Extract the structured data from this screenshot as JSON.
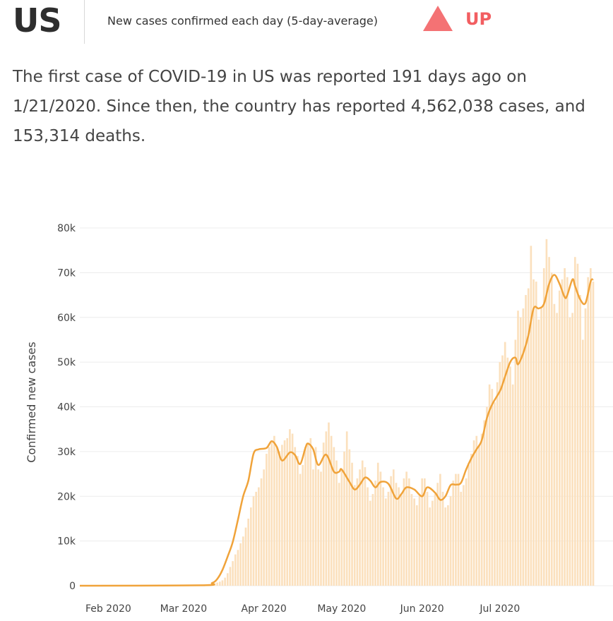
{
  "header": {
    "country": "US",
    "metric": "New cases confirmed each day (5-day-average)",
    "trend_label": "UP",
    "trend_icon": "triangle-up-icon",
    "trend_color": "#f25e61"
  },
  "summary": "The first case of COVID-19 in US was reported 191 days ago on 1/21/2020. Since then, the country has reported 4,562,038 cases, and 153,314 deaths.",
  "colors": {
    "bars": "#fbe0bd",
    "line": "#f0a33a",
    "grid": "#ececec"
  },
  "chart_data": {
    "type": "bar",
    "title": "",
    "xlabel": "",
    "ylabel": "Confirmed new cases",
    "ylim": [
      0,
      80000
    ],
    "y_ticks": [
      0,
      10000,
      20000,
      30000,
      40000,
      50000,
      60000,
      70000,
      80000
    ],
    "y_tick_labels": [
      "0",
      "10k",
      "20k",
      "30k",
      "40k",
      "50k",
      "60k",
      "70k",
      "80k"
    ],
    "x_ticks": [
      {
        "day": "2020-02-01",
        "label": "Feb 2020"
      },
      {
        "day": "2020-03-01",
        "label": "Mar 2020"
      },
      {
        "day": "2020-04-01",
        "label": "Apr 2020"
      },
      {
        "day": "2020-05-01",
        "label": "May 2020"
      },
      {
        "day": "2020-06-01",
        "label": "Jun 2020"
      },
      {
        "day": "2020-07-01",
        "label": "Jul 2020"
      }
    ],
    "grid": true,
    "series": [
      {
        "name": "",
        "kind": "bars",
        "start_date": "2020-01-21",
        "values": [
          1,
          0,
          0,
          0,
          1,
          0,
          0,
          0,
          0,
          1,
          0,
          2,
          0,
          0,
          0,
          1,
          0,
          0,
          0,
          0,
          0,
          0,
          0,
          0,
          0,
          0,
          0,
          0,
          0,
          0,
          0,
          2,
          0,
          1,
          0,
          0,
          0,
          10,
          20,
          20,
          30,
          40,
          50,
          70,
          100,
          120,
          150,
          200,
          280,
          300,
          330,
          450,
          550,
          700,
          900,
          1200,
          1800,
          2800,
          4200,
          5500,
          7000,
          8000,
          9500,
          11000,
          13000,
          15000,
          17500,
          20000,
          21000,
          22000,
          24000,
          26000,
          29500,
          31000,
          32000,
          33500,
          31000,
          30000,
          31500,
          32500,
          33000,
          35000,
          34000,
          31000,
          29000,
          25000,
          27000,
          31000,
          32000,
          33000,
          26000,
          31000,
          26000,
          25500,
          32000,
          34500,
          36500,
          33500,
          31000,
          28000,
          23000,
          26000,
          30000,
          34500,
          30500,
          27500,
          22500,
          24000,
          26000,
          28000,
          26500,
          22000,
          19000,
          20500,
          23500,
          27500,
          25500,
          22000,
          19500,
          21000,
          24500,
          26000,
          23000,
          22000,
          20500,
          24000,
          25500,
          24000,
          20500,
          19500,
          18000,
          20000,
          24000,
          24000,
          21000,
          17500,
          19000,
          20500,
          23000,
          25000,
          21000,
          17500,
          18000,
          20000,
          23500,
          25000,
          25000,
          21000,
          22500,
          24000,
          27000,
          29500,
          32500,
          33500,
          31500,
          34000,
          37000,
          40000,
          45000,
          44000,
          41000,
          45500,
          50000,
          51500,
          54500,
          51000,
          49000,
          45000,
          55000,
          61500,
          60000,
          62000,
          65000,
          66500,
          76000,
          68500,
          68000,
          59500,
          62000,
          71000,
          77500,
          73500,
          70000,
          63000,
          61000,
          66000,
          68500,
          71000,
          69000,
          60000,
          61000,
          73500,
          72000,
          65000,
          55000,
          62000,
          69000,
          71000,
          68000
        ]
      },
      {
        "name": "",
        "kind": "line",
        "label": "5-day average",
        "points": [
          [
            "2020-01-21",
            0
          ],
          [
            "2020-03-08",
            100
          ],
          [
            "2020-03-12",
            600
          ],
          [
            "2020-03-14",
            1500
          ],
          [
            "2020-03-16",
            3500
          ],
          [
            "2020-03-18",
            6500
          ],
          [
            "2020-03-20",
            9800
          ],
          [
            "2020-03-22",
            14800
          ],
          [
            "2020-03-24",
            20000
          ],
          [
            "2020-03-26",
            23500
          ],
          [
            "2020-03-28",
            29500
          ],
          [
            "2020-03-30",
            30500
          ],
          [
            "2020-04-02",
            30800
          ],
          [
            "2020-04-04",
            32300
          ],
          [
            "2020-04-06",
            31000
          ],
          [
            "2020-04-08",
            28000
          ],
          [
            "2020-04-11",
            29800
          ],
          [
            "2020-04-13",
            29200
          ],
          [
            "2020-04-15",
            27200
          ],
          [
            "2020-04-17",
            30800
          ],
          [
            "2020-04-18",
            31800
          ],
          [
            "2020-04-20",
            30500
          ],
          [
            "2020-04-22",
            27000
          ],
          [
            "2020-04-25",
            29300
          ],
          [
            "2020-04-28",
            25500
          ],
          [
            "2020-04-30",
            25500
          ],
          [
            "2020-05-01",
            26000
          ],
          [
            "2020-05-04",
            23200
          ],
          [
            "2020-05-06",
            21500
          ],
          [
            "2020-05-08",
            22600
          ],
          [
            "2020-05-10",
            24200
          ],
          [
            "2020-05-12",
            23500
          ],
          [
            "2020-05-14",
            22000
          ],
          [
            "2020-05-16",
            23200
          ],
          [
            "2020-05-19",
            22800
          ],
          [
            "2020-05-22",
            19500
          ],
          [
            "2020-05-24",
            20500
          ],
          [
            "2020-05-26",
            22000
          ],
          [
            "2020-05-29",
            21500
          ],
          [
            "2020-06-01",
            20000
          ],
          [
            "2020-06-03",
            22000
          ],
          [
            "2020-06-06",
            20800
          ],
          [
            "2020-06-08",
            19200
          ],
          [
            "2020-06-10",
            20000
          ],
          [
            "2020-06-12",
            22500
          ],
          [
            "2020-06-14",
            22600
          ],
          [
            "2020-06-16",
            23000
          ],
          [
            "2020-06-18",
            26000
          ],
          [
            "2020-06-20",
            28500
          ],
          [
            "2020-06-22",
            30500
          ],
          [
            "2020-06-24",
            32500
          ],
          [
            "2020-06-26",
            37500
          ],
          [
            "2020-06-28",
            40500
          ],
          [
            "2020-07-01",
            43500
          ],
          [
            "2020-07-02",
            45000
          ],
          [
            "2020-07-05",
            50000
          ],
          [
            "2020-07-07",
            51000
          ],
          [
            "2020-07-08",
            49500
          ],
          [
            "2020-07-10",
            52000
          ],
          [
            "2020-07-12",
            56000
          ],
          [
            "2020-07-14",
            62000
          ],
          [
            "2020-07-16",
            62000
          ],
          [
            "2020-07-18",
            63000
          ],
          [
            "2020-07-20",
            67500
          ],
          [
            "2020-07-22",
            69500
          ],
          [
            "2020-07-24",
            67500
          ],
          [
            "2020-07-26",
            64500
          ],
          [
            "2020-07-27",
            65000
          ],
          [
            "2020-07-29",
            68500
          ],
          [
            "2020-07-30",
            67000
          ],
          [
            "2020-08-01",
            64000
          ],
          [
            "2020-08-03",
            63200
          ],
          [
            "2020-08-05",
            68000
          ],
          [
            "2020-08-06",
            68500
          ]
        ]
      }
    ]
  }
}
